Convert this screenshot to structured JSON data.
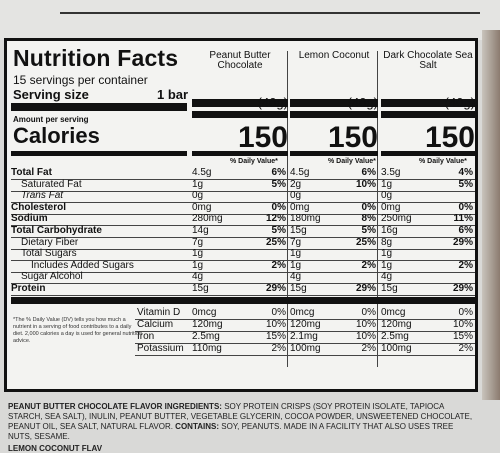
{
  "panel": {
    "title": "Nutrition Facts",
    "servings": "15 servings per container",
    "serving_size_label": "Serving size",
    "serving_size_value": "1 bar",
    "amount_per_serving": "Amount per serving",
    "calories_label": "Calories"
  },
  "flavors": [
    {
      "name": "Peanut Butter Chocolate",
      "weight": "(40g)",
      "calories": "150",
      "dv_header": "% Daily Value*"
    },
    {
      "name": "Lemon Coconut",
      "weight": "(40g)",
      "calories": "150",
      "dv_header": "% Daily Value*"
    },
    {
      "name": "Dark Chocolate Sea Salt",
      "weight": "(40g)",
      "calories": "150",
      "dv_header": "% Daily Value*"
    }
  ],
  "nutrients": [
    {
      "name": "Total Fat",
      "bold": true,
      "indent": 0,
      "vals": [
        [
          "4.5g",
          "6%"
        ],
        [
          "4.5g",
          "6%"
        ],
        [
          "3.5g",
          "4%"
        ]
      ]
    },
    {
      "name": "Saturated Fat",
      "bold": false,
      "indent": 1,
      "vals": [
        [
          "1g",
          "5%"
        ],
        [
          "2g",
          "10%"
        ],
        [
          "1g",
          "5%"
        ]
      ]
    },
    {
      "name": "Trans Fat",
      "bold": false,
      "indent": 1,
      "italic": true,
      "vals": [
        [
          "0g",
          ""
        ],
        [
          "0g",
          ""
        ],
        [
          "0g",
          ""
        ]
      ]
    },
    {
      "name": "Cholesterol",
      "bold": true,
      "indent": 0,
      "vals": [
        [
          "0mg",
          "0%"
        ],
        [
          "0mg",
          "0%"
        ],
        [
          "0mg",
          "0%"
        ]
      ]
    },
    {
      "name": "Sodium",
      "bold": true,
      "indent": 0,
      "vals": [
        [
          "280mg",
          "12%"
        ],
        [
          "180mg",
          "8%"
        ],
        [
          "250mg",
          "11%"
        ]
      ]
    },
    {
      "name": "Total Carbohydrate",
      "bold": true,
      "indent": 0,
      "vals": [
        [
          "14g",
          "5%"
        ],
        [
          "15g",
          "5%"
        ],
        [
          "16g",
          "6%"
        ]
      ]
    },
    {
      "name": "Dietary Fiber",
      "bold": false,
      "indent": 1,
      "vals": [
        [
          "7g",
          "25%"
        ],
        [
          "7g",
          "25%"
        ],
        [
          "8g",
          "29%"
        ]
      ]
    },
    {
      "name": "Total Sugars",
      "bold": false,
      "indent": 1,
      "vals": [
        [
          "1g",
          ""
        ],
        [
          "1g",
          ""
        ],
        [
          "1g",
          ""
        ]
      ]
    },
    {
      "name": "Includes Added Sugars",
      "bold": false,
      "indent": 2,
      "vals": [
        [
          "1g",
          "2%"
        ],
        [
          "1g",
          "2%"
        ],
        [
          "1g",
          "2%"
        ]
      ]
    },
    {
      "name": "Sugar Alcohol",
      "bold": false,
      "indent": 1,
      "vals": [
        [
          "4g",
          ""
        ],
        [
          "4g",
          ""
        ],
        [
          "4g",
          ""
        ]
      ]
    },
    {
      "name": "Protein",
      "bold": true,
      "indent": 0,
      "vals": [
        [
          "15g",
          "29%"
        ],
        [
          "15g",
          "29%"
        ],
        [
          "15g",
          "29%"
        ]
      ]
    }
  ],
  "vitamins": [
    {
      "name": "Vitamin D",
      "vals": [
        [
          "0mcg",
          "0%"
        ],
        [
          "0mcg",
          "0%"
        ],
        [
          "0mcg",
          "0%"
        ]
      ]
    },
    {
      "name": "Calcium",
      "vals": [
        [
          "120mg",
          "10%"
        ],
        [
          "120mg",
          "10%"
        ],
        [
          "120mg",
          "10%"
        ]
      ]
    },
    {
      "name": "Iron",
      "vals": [
        [
          "2.5mg",
          "15%"
        ],
        [
          "2.1mg",
          "10%"
        ],
        [
          "2.5mg",
          "15%"
        ]
      ]
    },
    {
      "name": "Potassium",
      "vals": [
        [
          "110mg",
          "2%"
        ],
        [
          "100mg",
          "2%"
        ],
        [
          "100mg",
          "2%"
        ]
      ]
    }
  ],
  "footnote": "*The % Daily Value (DV) tells you how much a nutrient in a serving of food contributes to a daily diet. 2,000 calories a day is used for general nutrition advice.",
  "ingredients": {
    "heading": "PEANUT BUTTER CHOCOLATE FLAVOR",
    "label": "INGREDIENTS:",
    "text": "SOY PROTEIN CRISPS (SOY PROTEIN ISOLATE, TAPIOCA STARCH, SEA SALT), INULIN, PEANUT BUTTER, VEGETABLE GLYCERIN, COCOA POWDER, UNSWEETENED CHOCOLATE, PEANUT OIL, SEA SALT, NATURAL FLAVOR.",
    "contains_label": "CONTAINS:",
    "contains_text": "SOY, PEANUTS. MADE IN A FACILITY THAT ALSO USES TREE NUTS, SESAME."
  },
  "next_flavor": "LEMON COCONUT FLAV"
}
